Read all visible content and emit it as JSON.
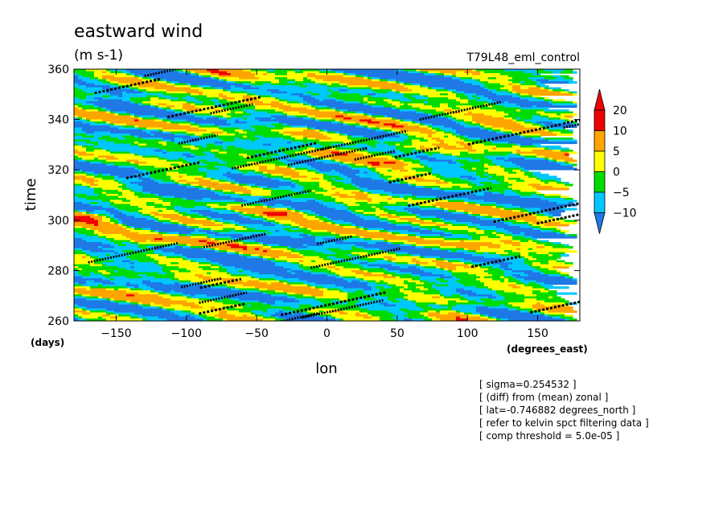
{
  "chart_data": {
    "type": "heatmap",
    "title": "eastward wind",
    "units": "(m s-1)",
    "run_label": "T79L48_eml_control",
    "xlabel": "lon",
    "x_units": "(degrees_east)",
    "ylabel": "time",
    "y_units": "(days)",
    "xlim": [
      -180,
      180
    ],
    "ylim": [
      260,
      360
    ],
    "x_ticks": [
      -150,
      -100,
      -50,
      0,
      50,
      100,
      150
    ],
    "y_ticks": [
      260,
      280,
      300,
      320,
      340,
      360
    ],
    "colorbar": {
      "levels": [
        -10,
        -5,
        0,
        5,
        10,
        20
      ],
      "colors": [
        "#1e78e6",
        "#00c8ff",
        "#00dc00",
        "#ffff00",
        "#ffa500",
        "#f00000"
      ]
    },
    "notes": [
      "[ sigma=0.254532 ]",
      "[ (diff) from (mean) zonal ]",
      "[ lat=-0.746882 degrees_north ]",
      "[ refer to kelvin spct filtering data ]",
      "[ comp threshold = 5.0e-05 ]"
    ]
  }
}
